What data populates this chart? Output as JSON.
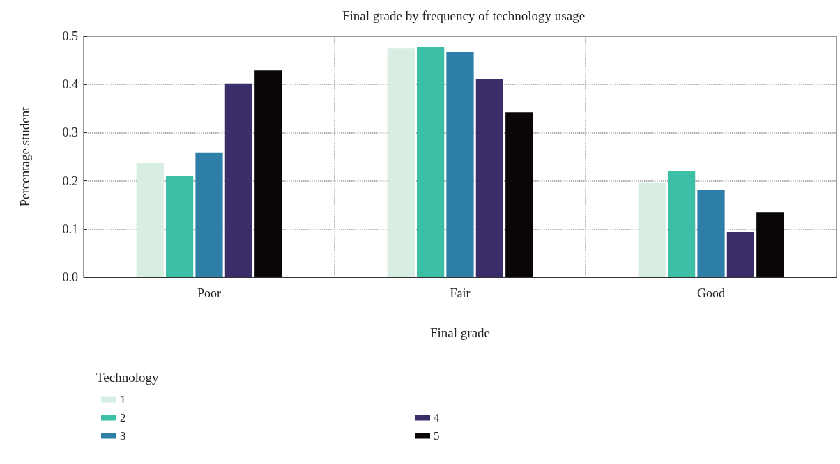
{
  "chart_data": {
    "type": "bar",
    "title": "Final grade by frequency of technology usage",
    "xlabel": "Final grade",
    "ylabel": "Percentage student",
    "legend_title": "Technology",
    "categories": [
      "Poor",
      "Fair",
      "Good"
    ],
    "series": [
      {
        "name": "1",
        "color": "#d9eee3",
        "values": [
          0.237,
          0.475,
          0.197
        ]
      },
      {
        "name": "2",
        "color": "#3cbfa4",
        "values": [
          0.211,
          0.478,
          0.22
        ]
      },
      {
        "name": "3",
        "color": "#2e7fa8",
        "values": [
          0.259,
          0.468,
          0.181
        ]
      },
      {
        "name": "4",
        "color": "#3b2d6a",
        "values": [
          0.402,
          0.412,
          0.094
        ]
      },
      {
        "name": "5",
        "color": "#0a0608",
        "values": [
          0.429,
          0.342,
          0.134
        ]
      }
    ],
    "ylim": [
      0,
      0.5
    ],
    "yticks": [
      {
        "value": 0,
        "label": "0.0"
      },
      0.1,
      0.2,
      0.3,
      0.4,
      0.5
    ],
    "grid": true,
    "legend": "bottom left"
  }
}
